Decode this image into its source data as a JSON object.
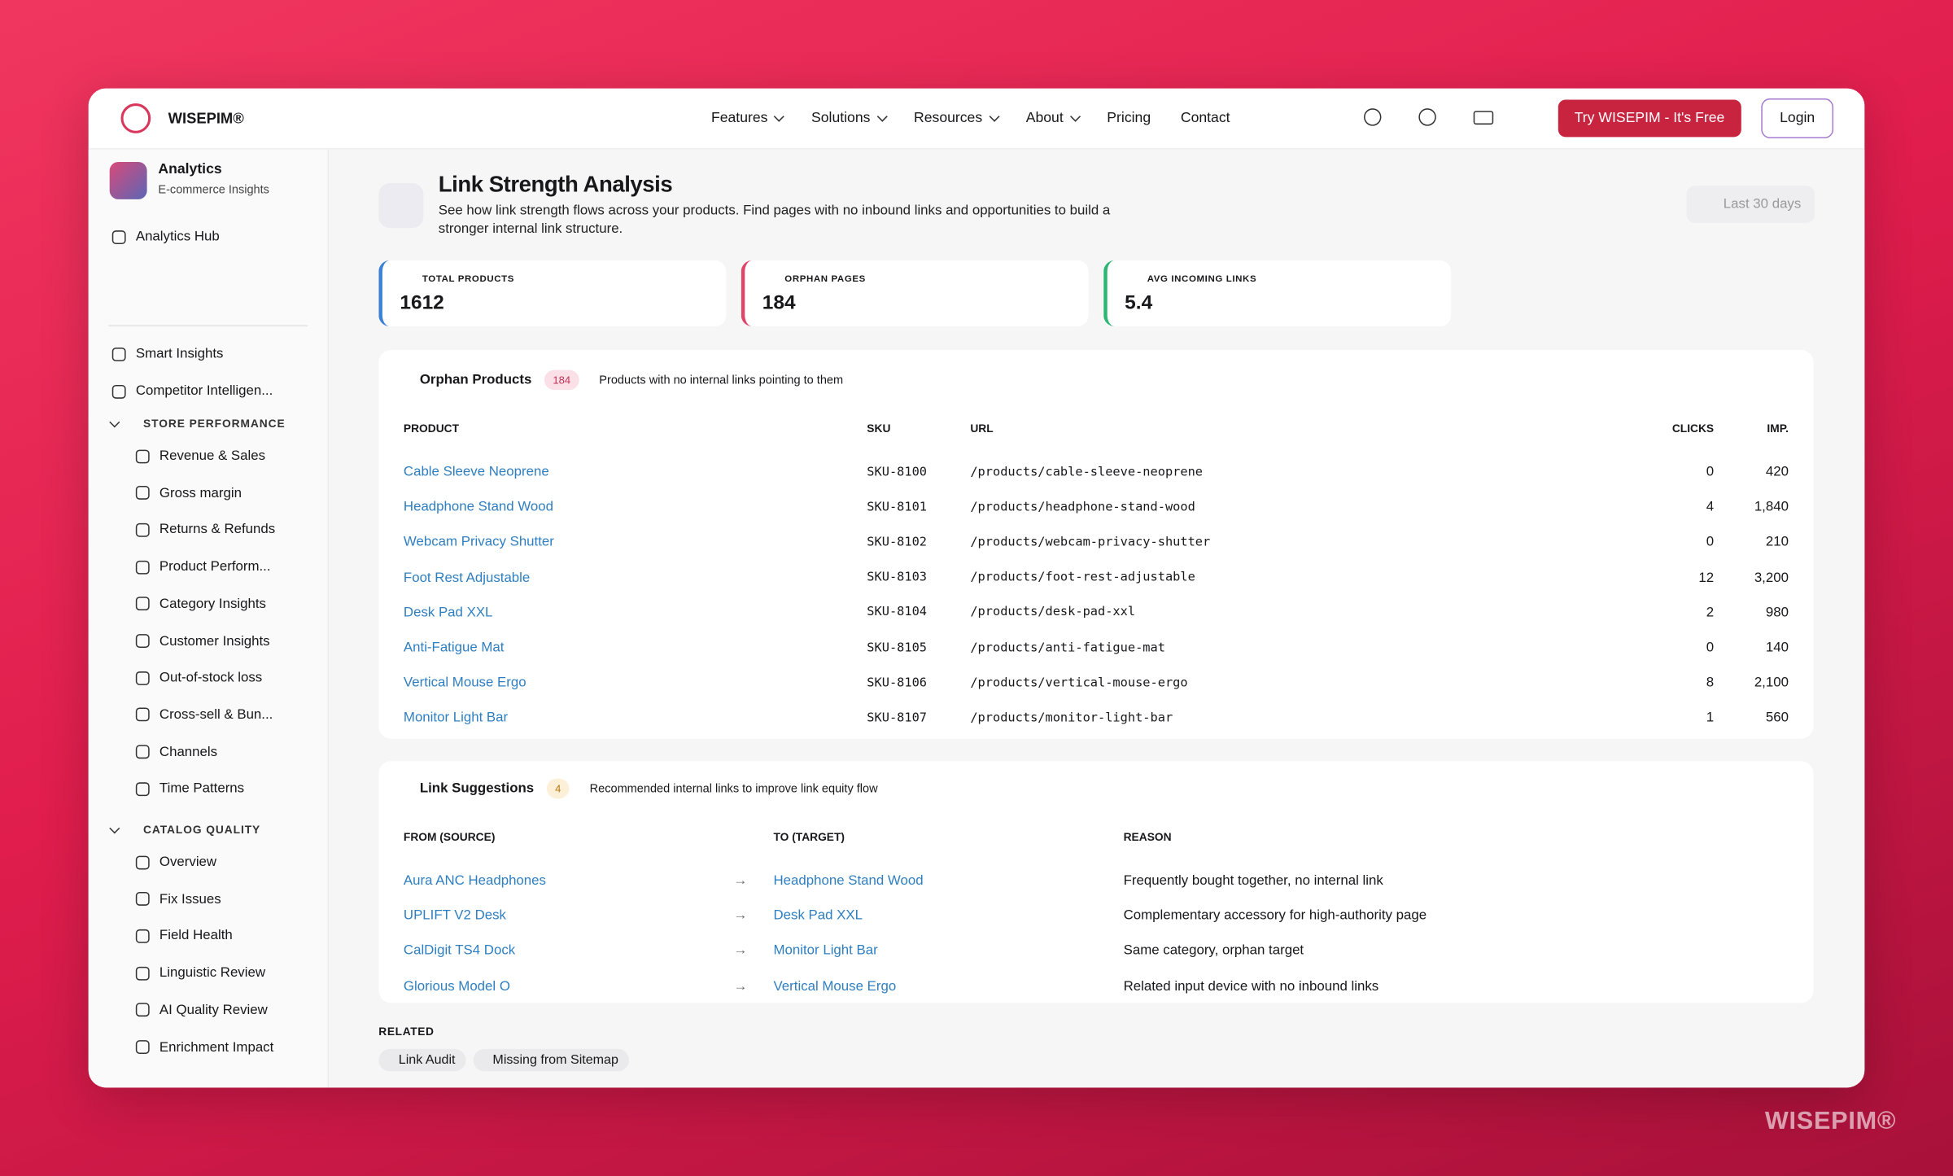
{
  "nav": {
    "brand": "WISEPIM®",
    "links": [
      "Features",
      "Solutions",
      "Resources",
      "About",
      "Pricing",
      "Contact"
    ],
    "cta": "Try WISEPIM - It's Free",
    "login": "Login"
  },
  "sidebar": {
    "app_title": "Analytics",
    "app_subtitle": "E-commerce Insights",
    "hub": "Analytics Hub",
    "top_items": [
      "Smart Insights",
      "Competitor Intelligen..."
    ],
    "sections": [
      {
        "title": "STORE PERFORMANCE",
        "items": [
          "Revenue & Sales",
          "Gross margin",
          "Returns & Refunds",
          "Product Perform...",
          "Category Insights",
          "Customer Insights",
          "Out-of-stock loss",
          "Cross-sell & Bun...",
          "Channels",
          "Time Patterns"
        ]
      },
      {
        "title": "CATALOG QUALITY",
        "items": [
          "Overview",
          "Fix Issues",
          "Field Health",
          "Linguistic Review",
          "AI Quality Review",
          "Enrichment Impact"
        ]
      }
    ]
  },
  "header": {
    "title": "Link Strength Analysis",
    "description": "See how link strength flows across your products. Find pages with no inbound links and opportunities to build a stronger internal link structure.",
    "date_range": "Last 30 days"
  },
  "stats": [
    {
      "label": "TOTAL PRODUCTS",
      "value": "1612"
    },
    {
      "label": "ORPHAN PAGES",
      "value": "184"
    },
    {
      "label": "AVG INCOMING LINKS",
      "value": "5.4"
    }
  ],
  "orphan_table": {
    "title": "Orphan Products",
    "count": "184",
    "description": "Products with no internal links pointing to them",
    "columns": [
      "PRODUCT",
      "SKU",
      "URL",
      "CLICKS",
      "IMP."
    ],
    "rows": [
      [
        "Cable Sleeve Neoprene",
        "SKU-8100",
        "/products/cable-sleeve-neoprene",
        "0",
        "420"
      ],
      [
        "Headphone Stand Wood",
        "SKU-8101",
        "/products/headphone-stand-wood",
        "4",
        "1,840"
      ],
      [
        "Webcam Privacy Shutter",
        "SKU-8102",
        "/products/webcam-privacy-shutter",
        "0",
        "210"
      ],
      [
        "Foot Rest Adjustable",
        "SKU-8103",
        "/products/foot-rest-adjustable",
        "12",
        "3,200"
      ],
      [
        "Desk Pad XXL",
        "SKU-8104",
        "/products/desk-pad-xxl",
        "2",
        "980"
      ],
      [
        "Anti-Fatigue Mat",
        "SKU-8105",
        "/products/anti-fatigue-mat",
        "0",
        "140"
      ],
      [
        "Vertical Mouse Ergo",
        "SKU-8106",
        "/products/vertical-mouse-ergo",
        "8",
        "2,100"
      ],
      [
        "Monitor Light Bar",
        "SKU-8107",
        "/products/monitor-light-bar",
        "1",
        "560"
      ]
    ]
  },
  "suggestions_table": {
    "title": "Link Suggestions",
    "count": "4",
    "description": "Recommended internal links to improve link equity flow",
    "columns": [
      "FROM (SOURCE)",
      "TO (TARGET)",
      "REASON"
    ],
    "rows": [
      [
        "Aura ANC Headphones",
        "Headphone Stand Wood",
        "Frequently bought together, no internal link"
      ],
      [
        "UPLIFT V2 Desk",
        "Desk Pad XXL",
        "Complementary accessory for high-authority page"
      ],
      [
        "CalDigit TS4 Dock",
        "Monitor Light Bar",
        "Same category, orphan target"
      ],
      [
        "Glorious Model O",
        "Vertical Mouse Ergo",
        "Related input device with no inbound links"
      ]
    ]
  },
  "related": {
    "title": "RELATED",
    "links": [
      "Link Audit",
      "Missing from Sitemap"
    ]
  },
  "watermark": "WISEPIM®"
}
